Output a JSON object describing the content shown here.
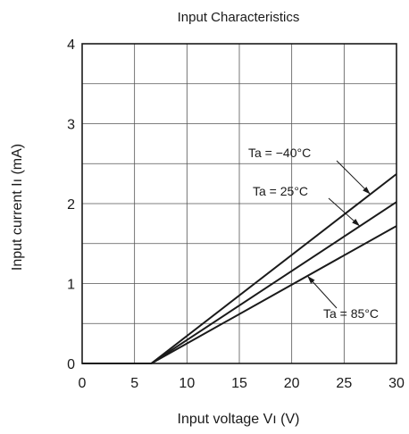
{
  "chart_data": {
    "type": "line",
    "title": "Input Characteristics",
    "xlabel": "Input voltage  Vı (V)",
    "ylabel": "Input current  Iı (mA)",
    "xlim": [
      0,
      30
    ],
    "ylim": [
      0,
      4
    ],
    "x_ticks": [
      0,
      5,
      10,
      15,
      20,
      25,
      30
    ],
    "y_ticks": [
      0,
      1,
      2,
      3,
      4
    ],
    "grid": true,
    "series": [
      {
        "name": "Ta = −40°C",
        "x": [
          0,
          6.6,
          30
        ],
        "y": [
          0,
          0,
          2.37
        ]
      },
      {
        "name": "Ta = 25°C",
        "x": [
          0,
          6.6,
          30
        ],
        "y": [
          0,
          0,
          2.02
        ]
      },
      {
        "name": "Ta = 85°C",
        "x": [
          0,
          6.6,
          30
        ],
        "y": [
          0,
          0,
          1.72
        ]
      }
    ]
  }
}
